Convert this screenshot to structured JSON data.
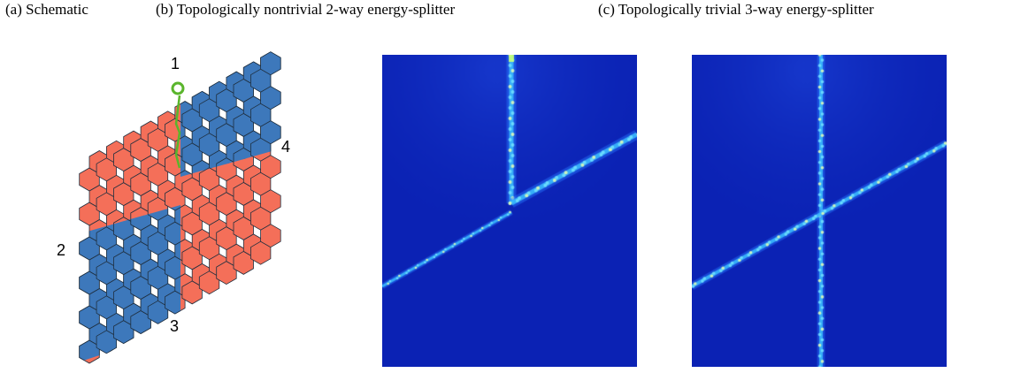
{
  "captions": {
    "a": "(a) Schematic",
    "b": "(b) Topologically nontrivial 2-way energy-splitter",
    "c": "(c) Topologically trivial 3-way energy-splitter"
  },
  "ports": {
    "p1": "1",
    "p2": "2",
    "p3": "3",
    "p4": "4"
  },
  "colors": {
    "blue_region": "#3d78bb",
    "orange_region": "#f46f59",
    "hex_stroke": "#1f2f3f",
    "source_marker": "#5ab52c",
    "field_background": "#0b22b4",
    "field_beam": "#27c8ff"
  },
  "panels": {
    "b": {
      "type": "field-intensity-map",
      "beams": [
        "vertical-top-to-center",
        "diagonal-center-to-right",
        "diagonal-center-to-left"
      ]
    },
    "c": {
      "type": "field-intensity-map",
      "beams": [
        "vertical-full",
        "diagonal-full"
      ]
    }
  }
}
